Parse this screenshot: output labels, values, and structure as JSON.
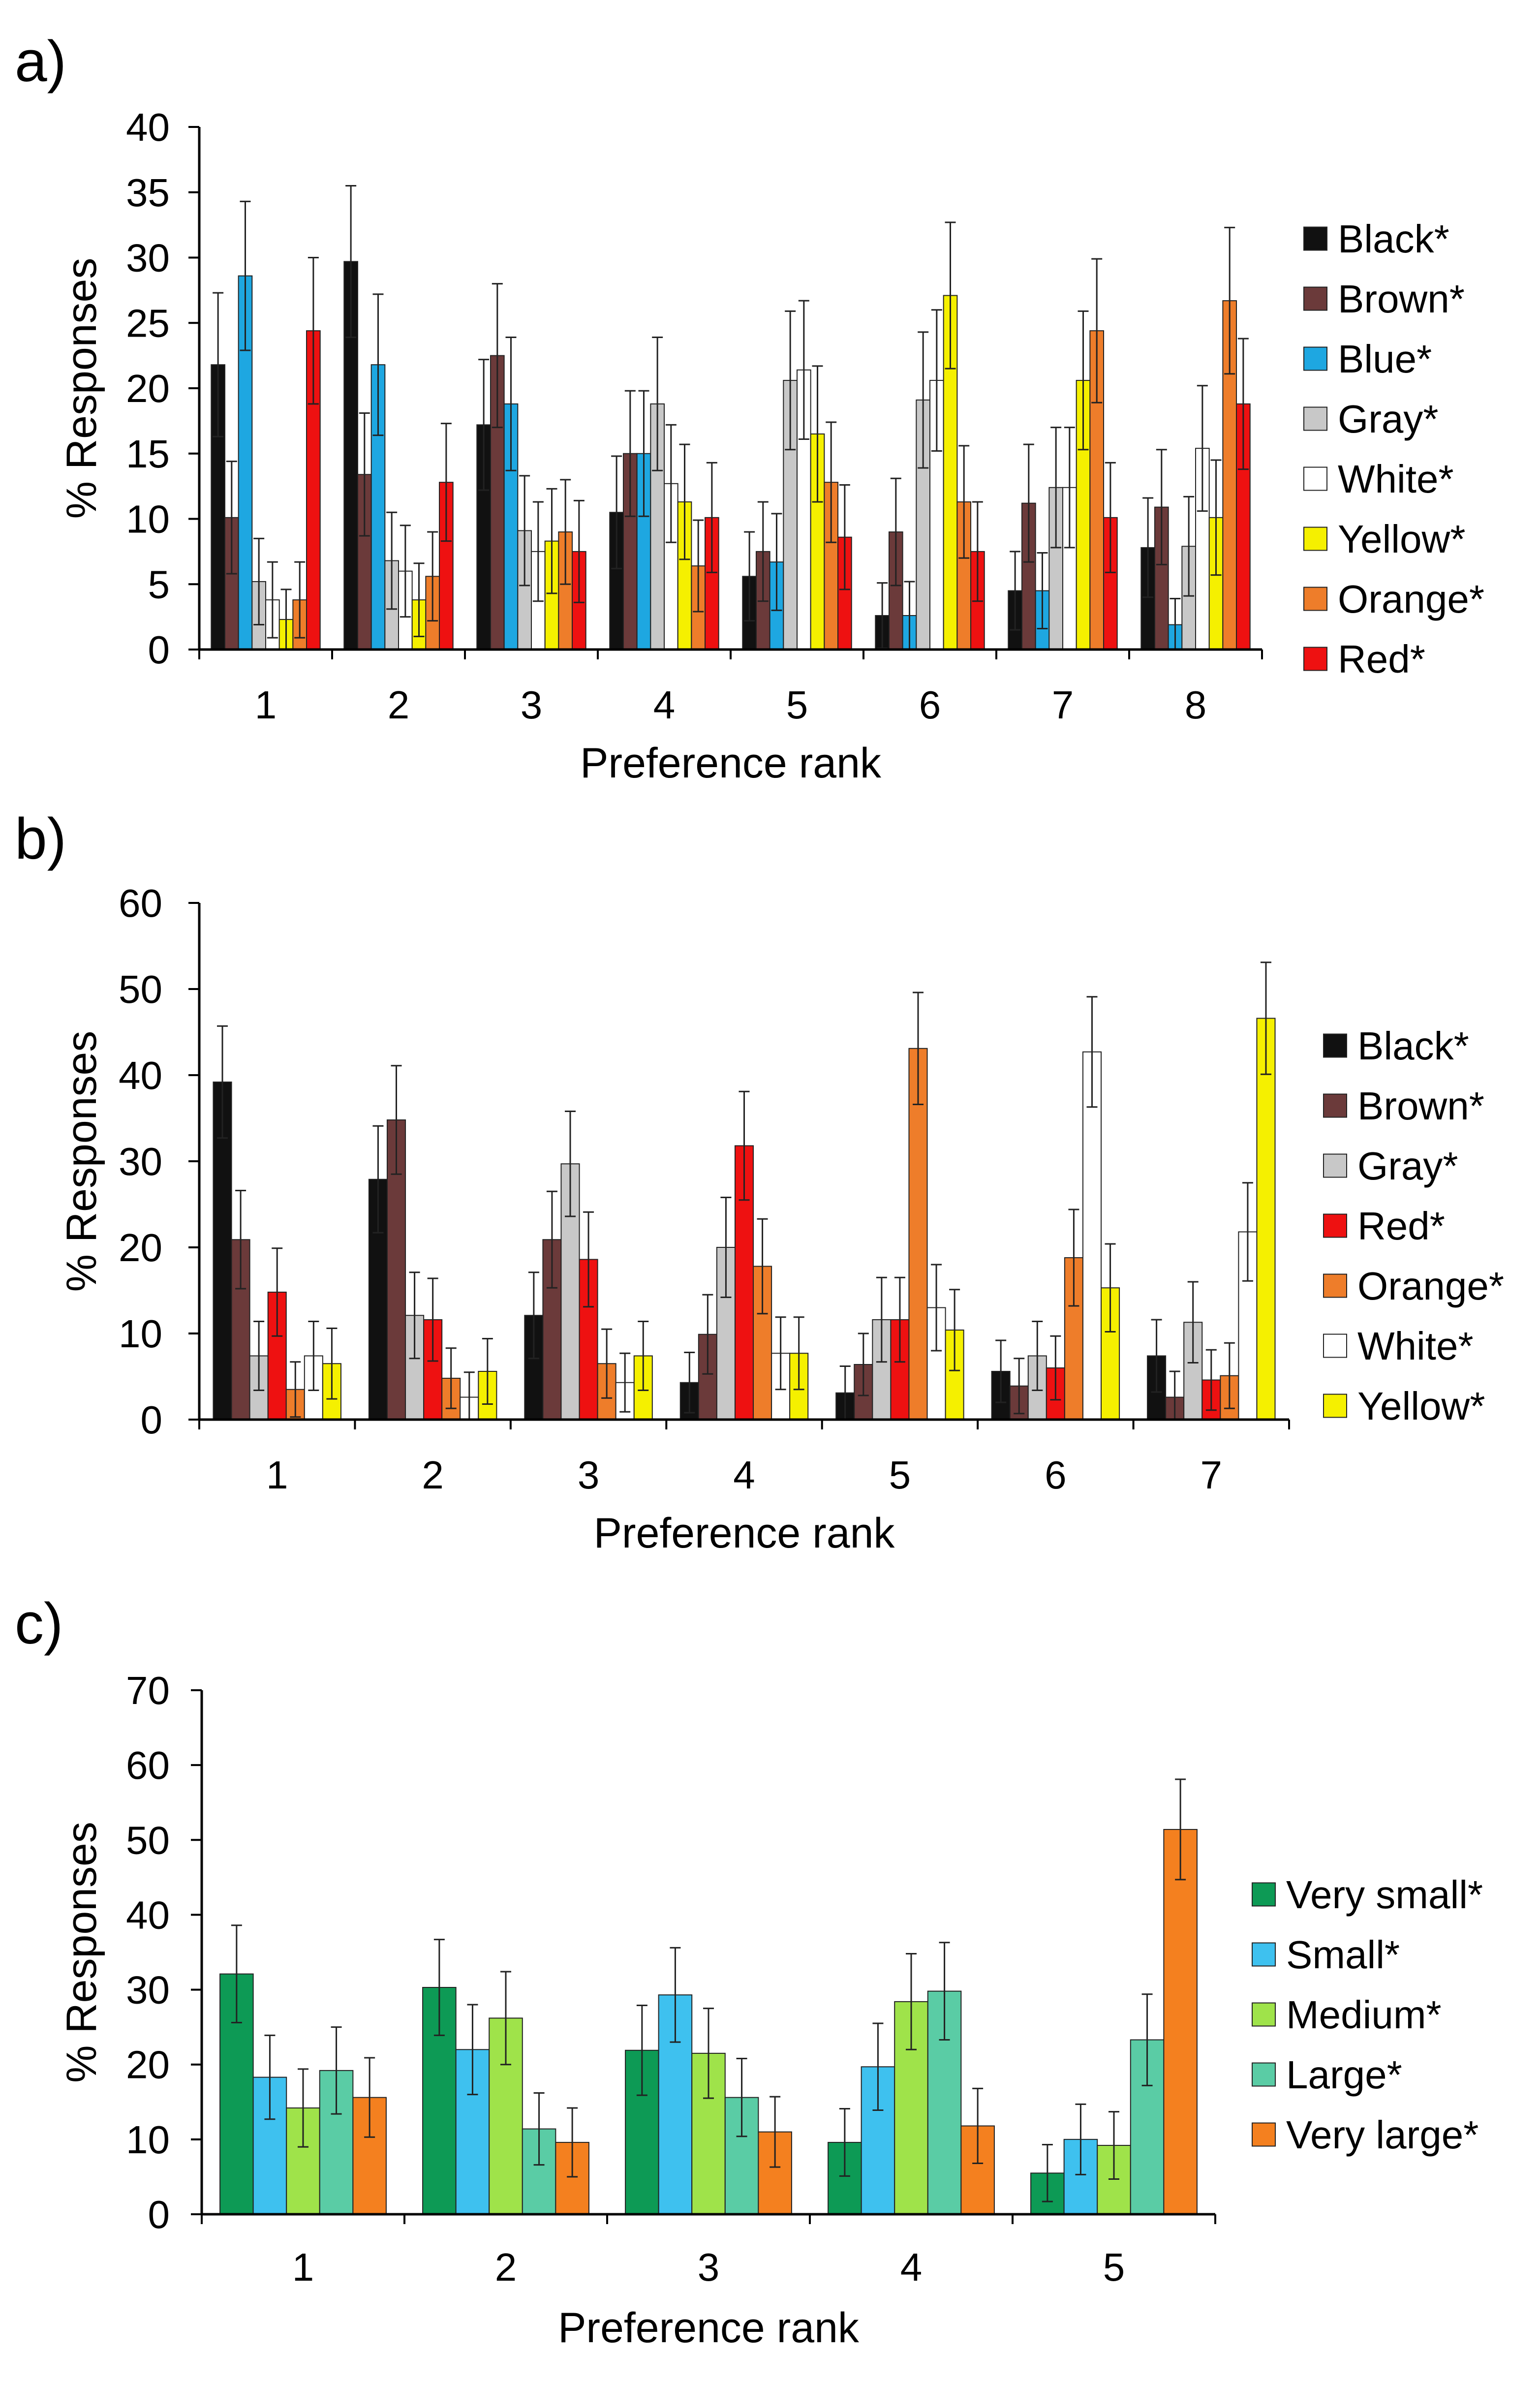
{
  "chart_data": [
    {
      "panel_label": "a)",
      "type": "bar",
      "xlabel": "Preference rank",
      "ylabel": "% Responses",
      "ylim": [
        0,
        40
      ],
      "yticks": [
        0,
        5,
        10,
        15,
        20,
        25,
        30,
        35,
        40
      ],
      "categories": [
        "1",
        "2",
        "3",
        "4",
        "5",
        "6",
        "7",
        "8"
      ],
      "legend_position": "right",
      "error_bars": true,
      "series": [
        {
          "name": "Black*",
          "color": "#111111",
          "values": [
            21.8,
            29.7,
            17.2,
            10.5,
            5.6,
            2.6,
            4.5,
            7.8
          ],
          "errors": [
            5.5,
            5.8,
            5.0,
            4.3,
            3.4,
            2.5,
            3.0,
            3.8
          ]
        },
        {
          "name": "Brown*",
          "color": "#6b3a3a",
          "values": [
            10.1,
            13.4,
            22.5,
            15.0,
            7.5,
            9.0,
            11.2,
            10.9
          ],
          "errors": [
            4.3,
            4.7,
            5.5,
            4.8,
            3.8,
            4.1,
            4.5,
            4.4
          ]
        },
        {
          "name": "Blue*",
          "color": "#1ea7e1",
          "values": [
            28.6,
            21.8,
            18.8,
            15.0,
            6.7,
            2.6,
            4.5,
            1.9
          ],
          "errors": [
            5.7,
            5.4,
            5.1,
            4.8,
            3.7,
            2.6,
            2.9,
            2.0
          ]
        },
        {
          "name": "Gray*",
          "color": "#c8c8c8",
          "values": [
            5.2,
            6.8,
            9.1,
            18.8,
            20.6,
            19.1,
            12.4,
            7.9
          ],
          "errors": [
            3.3,
            3.7,
            4.2,
            5.1,
            5.3,
            5.2,
            4.6,
            3.8
          ]
        },
        {
          "name": "White*",
          "color": "#ffffff",
          "values": [
            3.8,
            6.0,
            7.5,
            12.7,
            21.4,
            20.6,
            12.4,
            15.4
          ],
          "errors": [
            2.9,
            3.5,
            3.8,
            4.5,
            5.3,
            5.4,
            4.6,
            4.8
          ]
        },
        {
          "name": "Yellow*",
          "color": "#f5f000",
          "values": [
            2.3,
            3.8,
            8.3,
            11.3,
            16.5,
            27.1,
            20.6,
            10.1
          ],
          "errors": [
            2.3,
            2.8,
            4.0,
            4.4,
            5.2,
            5.6,
            5.3,
            4.4
          ]
        },
        {
          "name": "Orange*",
          "color": "#ee7d2a",
          "values": [
            3.8,
            5.6,
            9.0,
            6.4,
            12.8,
            11.3,
            24.4,
            26.7
          ],
          "errors": [
            2.9,
            3.4,
            4.0,
            3.5,
            4.6,
            4.3,
            5.5,
            5.6
          ]
        },
        {
          "name": "Red*",
          "color": "#ee1111",
          "values": [
            24.4,
            12.8,
            7.5,
            10.1,
            8.6,
            7.5,
            10.1,
            18.8
          ],
          "errors": [
            5.6,
            4.5,
            3.9,
            4.2,
            4.0,
            3.8,
            4.2,
            5.0
          ]
        }
      ]
    },
    {
      "panel_label": "b)",
      "type": "bar",
      "xlabel": "Preference rank",
      "ylabel": "% Responses",
      "ylim": [
        0,
        60
      ],
      "yticks": [
        0,
        10,
        20,
        30,
        40,
        50,
        60
      ],
      "categories": [
        "1",
        "2",
        "3",
        "4",
        "5",
        "6",
        "7"
      ],
      "legend_position": "right",
      "error_bars": true,
      "series": [
        {
          "name": "Black*",
          "color": "#111111",
          "values": [
            39.2,
            27.9,
            12.1,
            4.3,
            3.1,
            5.6,
            7.4
          ],
          "errors": [
            6.5,
            6.2,
            5.0,
            3.5,
            3.1,
            3.6,
            4.2
          ]
        },
        {
          "name": "Brown*",
          "color": "#6b3a3a",
          "values": [
            20.9,
            34.8,
            20.9,
            9.9,
            6.4,
            3.9,
            2.6
          ],
          "errors": [
            5.7,
            6.3,
            5.6,
            4.6,
            3.6,
            3.2,
            3.0
          ]
        },
        {
          "name": "Gray*",
          "color": "#c8c8c8",
          "values": [
            7.4,
            12.1,
            29.7,
            20.0,
            11.6,
            7.4,
            11.3
          ],
          "errors": [
            4.0,
            5.0,
            6.1,
            5.8,
            4.9,
            4.0,
            4.7
          ]
        },
        {
          "name": "Red*",
          "color": "#ee1111",
          "values": [
            14.8,
            11.6,
            18.6,
            31.8,
            11.6,
            6.0,
            4.6
          ],
          "errors": [
            5.1,
            4.8,
            5.5,
            6.3,
            4.9,
            3.7,
            3.5
          ]
        },
        {
          "name": "Orange*",
          "color": "#ee7d2a",
          "values": [
            3.5,
            4.8,
            6.5,
            17.8,
            43.1,
            18.8,
            5.1
          ],
          "errors": [
            3.2,
            3.5,
            4.0,
            5.5,
            6.5,
            5.6,
            3.8
          ]
        },
        {
          "name": "White*",
          "color": "#ffffff",
          "values": [
            7.4,
            2.6,
            4.3,
            7.7,
            13.0,
            42.7,
            21.8
          ],
          "errors": [
            4.0,
            2.9,
            3.4,
            4.2,
            5.0,
            6.4,
            5.7
          ]
        },
        {
          "name": "Yellow*",
          "color": "#f5f000",
          "values": [
            6.5,
            5.6,
            7.4,
            7.7,
            10.4,
            15.3,
            46.6
          ],
          "errors": [
            4.1,
            3.8,
            4.0,
            4.2,
            4.7,
            5.1,
            6.5
          ]
        }
      ]
    },
    {
      "panel_label": "c)",
      "type": "bar",
      "xlabel": "Preference rank",
      "ylabel": "% Responses",
      "ylim": [
        0,
        70
      ],
      "yticks": [
        0,
        10,
        20,
        30,
        40,
        50,
        60,
        70
      ],
      "categories": [
        "1",
        "2",
        "3",
        "4",
        "5"
      ],
      "legend_position": "right",
      "error_bars": true,
      "series": [
        {
          "name": "Very small*",
          "color": "#0d9a55",
          "values": [
            32.1,
            30.3,
            21.9,
            9.6,
            5.5
          ],
          "errors": [
            6.5,
            6.4,
            6.0,
            4.5,
            3.8
          ]
        },
        {
          "name": "Small*",
          "color": "#3ec1ef",
          "values": [
            18.3,
            22.0,
            29.3,
            19.7,
            10.0
          ],
          "errors": [
            5.6,
            6.0,
            6.3,
            5.8,
            4.7
          ]
        },
        {
          "name": "Medium*",
          "color": "#9fe34a",
          "values": [
            14.2,
            26.2,
            21.5,
            28.4,
            9.2
          ],
          "errors": [
            5.2,
            6.2,
            6.0,
            6.4,
            4.5
          ]
        },
        {
          "name": "Large*",
          "color": "#5acca5",
          "values": [
            19.2,
            11.4,
            15.6,
            29.8,
            23.3
          ],
          "errors": [
            5.8,
            4.8,
            5.2,
            6.5,
            6.1
          ]
        },
        {
          "name": "Very large*",
          "color": "#f4801f",
          "values": [
            15.6,
            9.6,
            11.0,
            11.8,
            51.4
          ],
          "errors": [
            5.3,
            4.6,
            4.7,
            5.0,
            6.7
          ]
        }
      ]
    }
  ]
}
